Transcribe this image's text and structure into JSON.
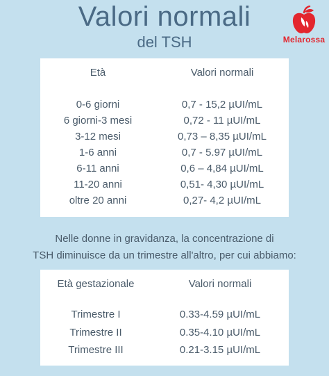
{
  "header": {
    "title": "Valori normali",
    "subtitle": "del TSH"
  },
  "logo": {
    "text": "Melarossa",
    "icon": "apple-icon",
    "color": "#e3262e"
  },
  "table_age": {
    "headers": [
      "Età",
      "Valori normali"
    ],
    "rows": [
      [
        "0-6 giorni",
        "0,7 - 15,2 µUI/mL"
      ],
      [
        "6 giorni-3 mesi",
        "0,72 - 11 µUI/mL"
      ],
      [
        "3-12 mesi",
        "0,73 – 8,35 µUI/mL"
      ],
      [
        "1-6 anni",
        "0,7 - 5.97 µUI/mL"
      ],
      [
        "6-11 anni",
        "0,6 – 4,84 µUI/mL"
      ],
      [
        "11-20 anni",
        "0,51- 4,30 µUI/mL"
      ],
      [
        "oltre 20 anni",
        "0,27- 4,2 µUI/mL"
      ]
    ]
  },
  "note": {
    "line1": "Nelle donne in gravidanza, la concentrazione di",
    "line2": "TSH diminuisce da un trimestre all'altro, per cui abbiamo:"
  },
  "table_pregnancy": {
    "headers": [
      "Età gestazionale",
      "Valori normali"
    ],
    "rows": [
      [
        "Trimestre I",
        "0.33-4.59 µUI/mL"
      ],
      [
        "Trimestre II",
        "0.35-4.10 µUI/mL"
      ],
      [
        "Trimestre III",
        "0.21-3.15 µUI/mL"
      ]
    ]
  },
  "colors": {
    "background": "#c4e0ee",
    "title": "#4a6a85",
    "text": "#4a5b6a",
    "card": "#ffffff"
  }
}
